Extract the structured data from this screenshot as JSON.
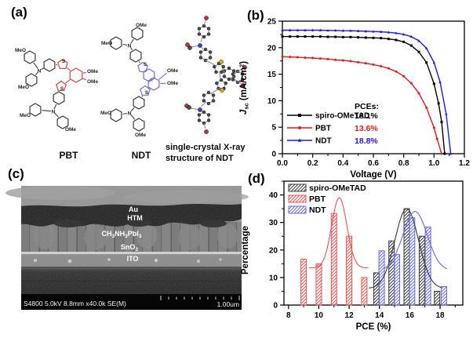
{
  "figure": {
    "panel_labels": {
      "a": "(a)",
      "b": "(b)",
      "c": "(c)",
      "d": "(d)"
    }
  },
  "panels": {
    "a": {
      "captions": {
        "pbt": "PBT",
        "ndt": "NDT",
        "xray1": "single-crystal X-ray",
        "xray2": "structure of NDT"
      },
      "pbt": {
        "meo1": "MeO",
        "meo2": "MeO",
        "meo3": "MeO",
        "ome_r1": "OMe",
        "ome_r2": "OMe",
        "ome": "OMe",
        "n1": "N",
        "n2": "N",
        "s1": "S",
        "s2": "S"
      },
      "ndt": {
        "ome_top": "OMe",
        "meo_left": "MeO",
        "ome_b1": "OMe",
        "ome_b2": "OMe",
        "meo_bot": "MeO",
        "ome_bot": "OMe",
        "n1": "N",
        "n2": "N",
        "s1": "S",
        "s2": "S"
      }
    },
    "c": {
      "labels": {
        "au": "Au",
        "htm": "HTM",
        "pvk": [
          "CH",
          "3",
          "NH",
          "3",
          "PbI",
          "3"
        ],
        "sno2": [
          "SnO",
          "2"
        ],
        "ito": "ITO"
      },
      "status_left": "S4800 5.0kV 8.8mm x40.0k SE(M)",
      "scale_label": "1.00um"
    }
  },
  "chart_data": [
    {
      "type": "line",
      "panel": "b",
      "xlabel": "Voltage (V)",
      "ylabel_parts": [
        "J",
        "sc",
        " (mA/cm",
        "2",
        ")"
      ],
      "xlim": [
        0.0,
        1.2
      ],
      "ylim": [
        0,
        25
      ],
      "xticks": [
        0.0,
        0.2,
        0.4,
        0.6,
        0.8,
        1.0,
        1.2
      ],
      "xtick_labels": [
        "0.0",
        "0.2",
        "0.4",
        "0.6",
        "0.8",
        "1.0",
        "1.2"
      ],
      "xticks_minor": [
        0.1,
        0.3,
        0.5,
        0.7,
        0.9,
        1.1
      ],
      "yticks": [
        0,
        5,
        10,
        15,
        20,
        25
      ],
      "ytick_labels": [
        "0",
        "5",
        "10",
        "15",
        "20",
        "25"
      ],
      "yticks_minor": [
        2.5,
        7.5,
        12.5,
        17.5,
        22.5
      ],
      "grid": false,
      "legend_position": "lower-left-inside",
      "pce_header": "PCEs:",
      "series": [
        {
          "name": "spiro-OMeTAD",
          "color": "#000000",
          "marker": "square",
          "pce": "18.1%",
          "jsc": 22.1,
          "voc": 1.07,
          "x": [
            0,
            0.05,
            0.1,
            0.15,
            0.2,
            0.25,
            0.3,
            0.35,
            0.4,
            0.45,
            0.5,
            0.55,
            0.6,
            0.65,
            0.7,
            0.75,
            0.8,
            0.85,
            0.9,
            0.95,
            1.0,
            1.03,
            1.05,
            1.07
          ],
          "y": [
            22.1,
            22.1,
            22.1,
            22.1,
            22.1,
            22.1,
            22.05,
            22.05,
            22.0,
            22.0,
            21.95,
            21.9,
            21.85,
            21.8,
            21.65,
            21.45,
            21.1,
            20.4,
            19.2,
            17.2,
            13.2,
            9.5,
            6.0,
            0
          ]
        },
        {
          "name": "PBT",
          "color": "#e31a1a",
          "marker": "circle",
          "pce": "13.6%",
          "jsc": 18.3,
          "voc": 1.05,
          "x": [
            0,
            0.05,
            0.1,
            0.15,
            0.2,
            0.25,
            0.3,
            0.35,
            0.4,
            0.45,
            0.5,
            0.55,
            0.6,
            0.65,
            0.7,
            0.75,
            0.8,
            0.85,
            0.9,
            0.95,
            1.0,
            1.02,
            1.05
          ],
          "y": [
            18.3,
            18.25,
            18.2,
            18.1,
            18.05,
            17.95,
            17.85,
            17.7,
            17.6,
            17.45,
            17.25,
            17.05,
            16.8,
            16.5,
            16.1,
            15.5,
            14.6,
            13.3,
            11.4,
            8.7,
            4.9,
            2.8,
            0
          ]
        },
        {
          "name": "NDT",
          "color": "#1a1ae3",
          "marker": "triangle",
          "pce": "18.8%",
          "jsc": 23.3,
          "voc": 1.11,
          "x": [
            0,
            0.05,
            0.1,
            0.15,
            0.2,
            0.25,
            0.3,
            0.35,
            0.4,
            0.45,
            0.5,
            0.55,
            0.6,
            0.65,
            0.7,
            0.75,
            0.8,
            0.85,
            0.9,
            0.95,
            1.0,
            1.04,
            1.08,
            1.11
          ],
          "y": [
            23.3,
            23.3,
            23.3,
            23.3,
            23.3,
            23.3,
            23.25,
            23.25,
            23.2,
            23.2,
            23.15,
            23.1,
            23.05,
            23.0,
            22.9,
            22.75,
            22.5,
            22.1,
            21.3,
            19.9,
            17.2,
            13.5,
            7.5,
            0
          ]
        }
      ]
    },
    {
      "type": "bar",
      "panel": "d",
      "xlabel": "PCE (%)",
      "ylabel": "Percentage",
      "xlim": [
        7.7,
        19.5
      ],
      "ylim": [
        0,
        45
      ],
      "xticks": [
        8,
        10,
        12,
        14,
        16,
        18
      ],
      "xtick_labels": [
        "8",
        "10",
        "12",
        "14",
        "16",
        "18"
      ],
      "xticks_minor": [
        9,
        11,
        13,
        15,
        17,
        19
      ],
      "yticks": [
        0,
        10,
        20,
        30,
        40
      ],
      "ytick_labels": [
        "0",
        "10",
        "20",
        "30",
        "40"
      ],
      "yticks_minor": [
        5,
        15,
        25,
        35,
        45
      ],
      "grid": false,
      "legend_position": "upper-left-inside",
      "bar_width": 0.36,
      "hatch": "diagonal",
      "series": [
        {
          "name": "spiro-OMeTAD",
          "color": "#3a3a3a",
          "centers": [
            13.8,
            14.8,
            15.8,
            16.8,
            17.8
          ],
          "values": [
            11.7,
            23.3,
            35,
            25,
            5
          ],
          "fit": {
            "center": 15.8,
            "amplitude": 29,
            "sigma": 0.78,
            "offset": 6,
            "xmin": 13.3,
            "xmax": 18.1
          }
        },
        {
          "name": "PBT",
          "color": "#e85555",
          "centers": [
            9,
            10,
            11,
            12,
            13
          ],
          "values": [
            16.7,
            15,
            33.3,
            25,
            10
          ],
          "fit": {
            "center": 11.35,
            "amplitude": 25.5,
            "sigma": 0.5,
            "offset": 13.5,
            "xmin": 9.35,
            "xmax": 13.3
          }
        },
        {
          "name": "NDT",
          "color": "#6b6bdc",
          "centers": [
            14.15,
            15.15,
            16.15,
            17.2,
            18.25
          ],
          "values": [
            19.7,
            18.3,
            31.7,
            28.3,
            6.7
          ],
          "fit": {
            "center": 16.35,
            "amplitude": 21.5,
            "sigma": 0.8,
            "offset": 12.5,
            "xmin": 14.3,
            "xmax": 18.5
          }
        }
      ]
    }
  ]
}
